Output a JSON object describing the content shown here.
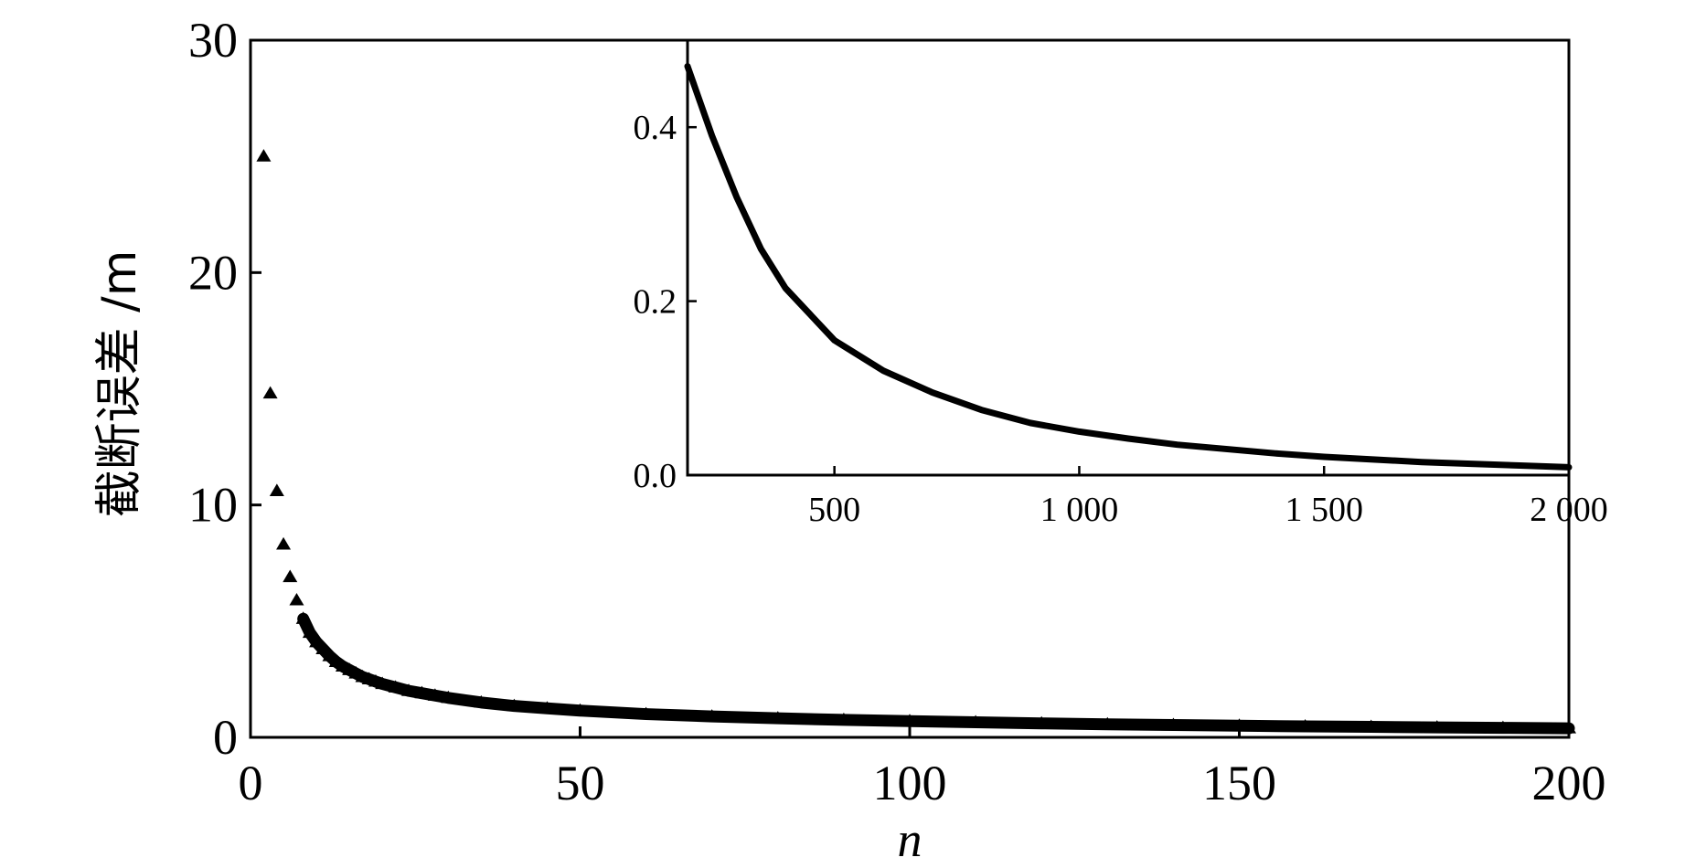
{
  "chart_data": [
    {
      "type": "scatter",
      "role": "main",
      "title": "",
      "xlabel": "n",
      "ylabel": "截断误差 /m",
      "xlim": [
        0,
        200
      ],
      "ylim": [
        0,
        30
      ],
      "xticks": [
        0,
        50,
        100,
        150,
        200
      ],
      "xtick_labels": [
        "0",
        "50",
        "100",
        "150",
        "200"
      ],
      "yticks": [
        0,
        10,
        20,
        30
      ],
      "ytick_labels": [
        "0",
        "10",
        "20",
        "30"
      ],
      "marker": "triangle",
      "grid": false,
      "points_estimated": [
        [
          2,
          25.0
        ],
        [
          3,
          14.8
        ],
        [
          4,
          10.6
        ],
        [
          5,
          8.3
        ],
        [
          6,
          6.9
        ],
        [
          7,
          5.9
        ],
        [
          8,
          5.1
        ],
        [
          9,
          4.5
        ],
        [
          10,
          4.1
        ],
        [
          11,
          3.8
        ],
        [
          12,
          3.5
        ],
        [
          13,
          3.25
        ],
        [
          14,
          3.05
        ],
        [
          15,
          2.9
        ],
        [
          16,
          2.75
        ],
        [
          17,
          2.6
        ],
        [
          18,
          2.5
        ],
        [
          19,
          2.4
        ],
        [
          20,
          2.3
        ],
        [
          22,
          2.15
        ],
        [
          24,
          2.0
        ],
        [
          26,
          1.9
        ],
        [
          28,
          1.8
        ],
        [
          30,
          1.7
        ],
        [
          35,
          1.5
        ],
        [
          40,
          1.35
        ],
        [
          45,
          1.25
        ],
        [
          50,
          1.15
        ],
        [
          60,
          1.0
        ],
        [
          70,
          0.9
        ],
        [
          80,
          0.82
        ],
        [
          90,
          0.75
        ],
        [
          100,
          0.7
        ],
        [
          110,
          0.65
        ],
        [
          120,
          0.6
        ],
        [
          130,
          0.56
        ],
        [
          140,
          0.53
        ],
        [
          150,
          0.5
        ],
        [
          160,
          0.47
        ],
        [
          170,
          0.45
        ],
        [
          180,
          0.43
        ],
        [
          190,
          0.41
        ],
        [
          200,
          0.39
        ]
      ]
    },
    {
      "type": "line",
      "role": "inset",
      "title": "",
      "xlabel": "",
      "ylabel": "",
      "xlim": [
        200,
        2000
      ],
      "ylim": [
        0,
        0.5
      ],
      "xticks": [
        500,
        1000,
        1500,
        2000
      ],
      "xtick_labels": [
        "500",
        "1 000",
        "1 500",
        "2 000"
      ],
      "yticks": [
        0,
        0.2,
        0.4
      ],
      "ytick_labels": [
        "0.0",
        "0.2",
        "0.4"
      ],
      "grid": false,
      "points_estimated": [
        [
          200,
          0.47
        ],
        [
          250,
          0.39
        ],
        [
          300,
          0.32
        ],
        [
          350,
          0.26
        ],
        [
          400,
          0.215
        ],
        [
          500,
          0.155
        ],
        [
          600,
          0.12
        ],
        [
          700,
          0.095
        ],
        [
          800,
          0.075
        ],
        [
          900,
          0.06
        ],
        [
          1000,
          0.05
        ],
        [
          1100,
          0.042
        ],
        [
          1200,
          0.035
        ],
        [
          1300,
          0.03
        ],
        [
          1400,
          0.025
        ],
        [
          1500,
          0.021
        ],
        [
          1600,
          0.018
        ],
        [
          1700,
          0.015
        ],
        [
          1800,
          0.013
        ],
        [
          1900,
          0.011
        ],
        [
          2000,
          0.009
        ]
      ]
    }
  ]
}
